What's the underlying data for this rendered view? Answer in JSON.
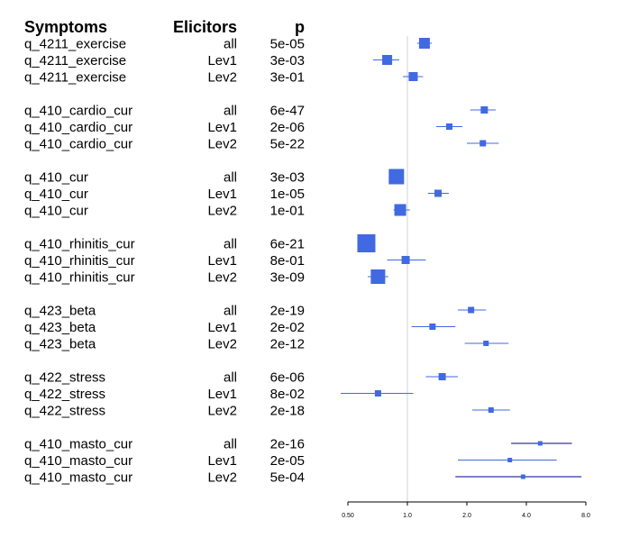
{
  "chart_data": {
    "type": "forest",
    "columns": {
      "symptoms": "Symptoms",
      "elicitors": "Elicitors",
      "p": "p"
    },
    "x_scale": "log",
    "xlim": [
      0.5,
      8.0
    ],
    "reference_line": 1.0,
    "x_ticks": [
      "0.50",
      "1.0",
      "2.0",
      "4.0",
      "8.0"
    ],
    "groups": [
      {
        "symptom": "q_4211_exercise",
        "rows": [
          {
            "elicitor": "all",
            "p": "5e-05",
            "est": 1.22,
            "lo": 1.12,
            "hi": 1.33,
            "size": 12
          },
          {
            "elicitor": "Lev1",
            "p": "3e-03",
            "est": 0.79,
            "lo": 0.67,
            "hi": 0.91,
            "size": 11
          },
          {
            "elicitor": "Lev2",
            "p": "3e-01",
            "est": 1.07,
            "lo": 0.95,
            "hi": 1.2,
            "size": 10
          }
        ]
      },
      {
        "symptom": "q_410_cardio_cur",
        "rows": [
          {
            "elicitor": "all",
            "p": "6e-47",
            "est": 2.45,
            "lo": 2.08,
            "hi": 2.8,
            "size": 8
          },
          {
            "elicitor": "Lev1",
            "p": "2e-06",
            "est": 1.63,
            "lo": 1.4,
            "hi": 1.9,
            "size": 7
          },
          {
            "elicitor": "Lev2",
            "p": "5e-22",
            "est": 2.41,
            "lo": 2.0,
            "hi": 2.9,
            "size": 7
          }
        ]
      },
      {
        "symptom": "q_410_cur",
        "rows": [
          {
            "elicitor": "all",
            "p": "3e-03",
            "est": 0.88,
            "lo": 0.88,
            "hi": 0.88,
            "size": 17
          },
          {
            "elicitor": "Lev1",
            "p": "1e-05",
            "est": 1.43,
            "lo": 1.27,
            "hi": 1.62,
            "size": 8
          },
          {
            "elicitor": "Lev2",
            "p": "1e-01",
            "est": 0.92,
            "lo": 0.85,
            "hi": 1.03,
            "size": 13
          }
        ]
      },
      {
        "symptom": "q_410_rhinitis_cur",
        "rows": [
          {
            "elicitor": "all",
            "p": "6e-21",
            "est": 0.62,
            "lo": 0.62,
            "hi": 0.62,
            "size": 20
          },
          {
            "elicitor": "Lev1",
            "p": "8e-01",
            "est": 0.98,
            "lo": 0.79,
            "hi": 1.24,
            "size": 9
          },
          {
            "elicitor": "Lev2",
            "p": "3e-09",
            "est": 0.71,
            "lo": 0.63,
            "hi": 0.8,
            "size": 16
          }
        ]
      },
      {
        "symptom": "q_423_beta",
        "rows": [
          {
            "elicitor": "all",
            "p": "2e-19",
            "est": 2.1,
            "lo": 1.8,
            "hi": 2.5,
            "size": 7
          },
          {
            "elicitor": "Lev1",
            "p": "2e-02",
            "est": 1.34,
            "lo": 1.05,
            "hi": 1.75,
            "size": 7
          },
          {
            "elicitor": "Lev2",
            "p": "2e-12",
            "est": 2.5,
            "lo": 1.95,
            "hi": 3.25,
            "size": 6
          }
        ]
      },
      {
        "symptom": "q_422_stress",
        "rows": [
          {
            "elicitor": "all",
            "p": "6e-06",
            "est": 1.5,
            "lo": 1.24,
            "hi": 1.8,
            "size": 8
          },
          {
            "elicitor": "Lev1",
            "p": "8e-02",
            "est": 0.71,
            "lo": 0.46,
            "hi": 1.07,
            "size": 7
          },
          {
            "elicitor": "Lev2",
            "p": "2e-18",
            "est": 2.65,
            "lo": 2.13,
            "hi": 3.3,
            "size": 6
          }
        ]
      },
      {
        "symptom": "q_410_masto_cur",
        "rows": [
          {
            "elicitor": "all",
            "p": "2e-16",
            "est": 4.7,
            "lo": 3.35,
            "hi": 6.8,
            "size": 5
          },
          {
            "elicitor": "Lev1",
            "p": "2e-05",
            "est": 3.3,
            "lo": 1.8,
            "hi": 5.7,
            "size": 5
          },
          {
            "elicitor": "Lev2",
            "p": "5e-04",
            "est": 3.85,
            "lo": 1.75,
            "hi": 7.6,
            "size": 5
          }
        ]
      }
    ],
    "colors": {
      "box": "#4169e1",
      "whisker": "#4169e1",
      "whisker_dark": "#00008b",
      "reference": "#d3d3d3",
      "text": "#000000"
    }
  }
}
